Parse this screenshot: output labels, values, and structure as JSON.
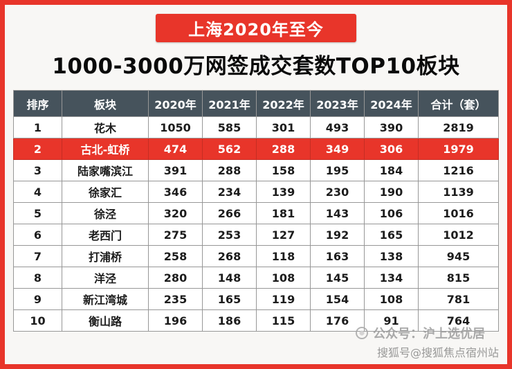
{
  "banner": {
    "label": "上海2020年至今"
  },
  "title": "1000-3000万网签成交套数TOP10板块",
  "chart_data": {
    "type": "table",
    "title": "1000-3000万网签成交套数TOP10板块",
    "subtitle": "上海2020年至今",
    "columns": [
      "排序",
      "板块",
      "2020年",
      "2021年",
      "2022年",
      "2023年",
      "2024年",
      "合计（套）"
    ],
    "rows": [
      [
        "1",
        "花木",
        "1050",
        "585",
        "301",
        "493",
        "390",
        "2819"
      ],
      [
        "2",
        "古北-虹桥",
        "474",
        "562",
        "288",
        "349",
        "306",
        "1979"
      ],
      [
        "3",
        "陆家嘴滨江",
        "391",
        "288",
        "158",
        "195",
        "184",
        "1216"
      ],
      [
        "4",
        "徐家汇",
        "346",
        "234",
        "139",
        "230",
        "190",
        "1139"
      ],
      [
        "5",
        "徐泾",
        "320",
        "266",
        "181",
        "143",
        "106",
        "1016"
      ],
      [
        "6",
        "老西门",
        "275",
        "253",
        "127",
        "192",
        "165",
        "1012"
      ],
      [
        "7",
        "打浦桥",
        "258",
        "268",
        "118",
        "163",
        "138",
        "945"
      ],
      [
        "8",
        "洋泾",
        "280",
        "148",
        "108",
        "145",
        "134",
        "815"
      ],
      [
        "9",
        "新江湾城",
        "235",
        "165",
        "119",
        "154",
        "108",
        "781"
      ],
      [
        "10",
        "衡山路",
        "196",
        "186",
        "115",
        "176",
        "91",
        "764"
      ]
    ],
    "highlighted_row_rank": "2",
    "legend_position": "none",
    "grid": true
  },
  "watermarks": {
    "overlay": "公众号：沪上选优居",
    "bottom": "搜狐号@搜狐焦点宿州站"
  },
  "colors": {
    "accent_red": "#e8352a",
    "header_bg": "#46535c",
    "highlight_bg": "#e8352a",
    "cell_border": "#979797"
  }
}
